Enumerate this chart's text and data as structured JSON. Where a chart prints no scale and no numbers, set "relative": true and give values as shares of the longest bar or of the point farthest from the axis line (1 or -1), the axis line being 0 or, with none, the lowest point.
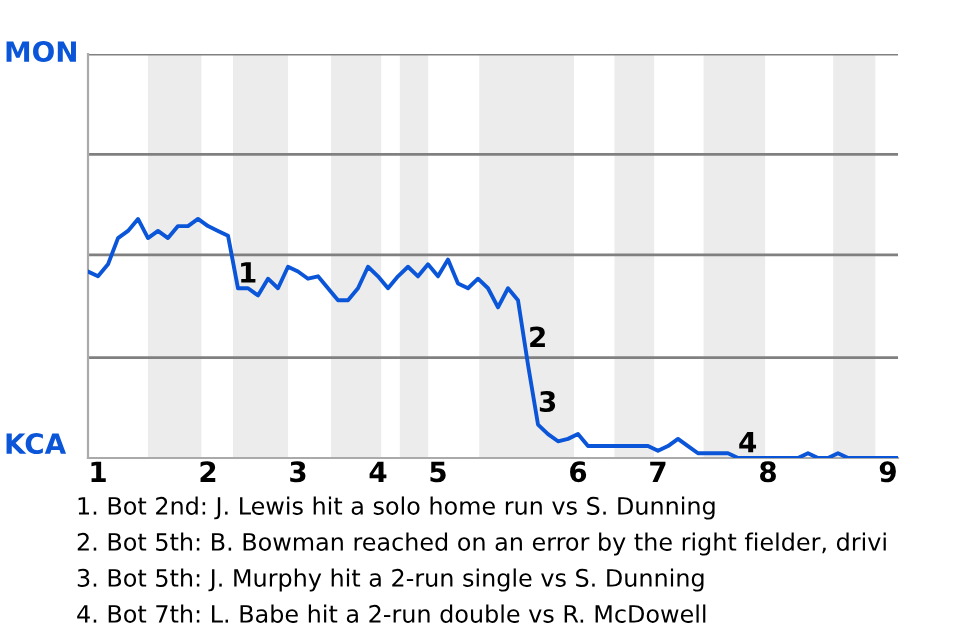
{
  "chart_data": {
    "type": "line",
    "relative": true,
    "categories": [
      null,
      "1",
      null,
      null,
      null,
      null,
      null,
      null,
      null,
      null,
      null,
      null,
      "2",
      null,
      null,
      null,
      null,
      null,
      null,
      null,
      null,
      "3",
      null,
      null,
      null,
      null,
      null,
      null,
      null,
      "4",
      null,
      null,
      null,
      null,
      null,
      "5",
      null,
      null,
      null,
      null,
      null,
      null,
      null,
      null,
      null,
      null,
      null,
      null,
      null,
      "6",
      null,
      null,
      null,
      null,
      null,
      null,
      null,
      "7",
      null,
      null,
      null,
      null,
      null,
      null,
      null,
      null,
      null,
      null,
      "8",
      null,
      null,
      null,
      null,
      null,
      null,
      null,
      null,
      null,
      null,
      null,
      "9",
      null
    ],
    "series": [
      {
        "color": "#0a55d8",
        "values": [
          0.78,
          0.76,
          0.81,
          0.92,
          0.95,
          1,
          0.92,
          0.95,
          0.92,
          0.97,
          0.97,
          1,
          0.97,
          0.95,
          0.93,
          0.71,
          0.71,
          0.68,
          0.75,
          0.71,
          0.8,
          0.78,
          0.75,
          0.76,
          0.71,
          0.66,
          0.66,
          0.71,
          0.8,
          0.76,
          0.71,
          0.76,
          0.8,
          0.76,
          0.81,
          0.76,
          0.83,
          0.73,
          0.71,
          0.75,
          0.71,
          0.63,
          0.71,
          0.66,
          0.39,
          0.14,
          0.1,
          0.07,
          0.08,
          0.1,
          0.05,
          0.05,
          0.05,
          0.05,
          0.05,
          0.05,
          0.05,
          0.03,
          0.05,
          0.08,
          0.05,
          0.02,
          0.02,
          0.02,
          0.02,
          0,
          0,
          0,
          0,
          0,
          0,
          0,
          0.02,
          0,
          0,
          0.02,
          0,
          0,
          0,
          0,
          0,
          0
        ]
      }
    ],
    "marker": "none",
    "line_style": "solid",
    "ref_lines": [
      {
        "axis": "y",
        "value": 0.42,
        "color": "#808080"
      },
      {
        "axis": "y",
        "value": 0.85,
        "color": "#808080"
      },
      {
        "axis": "y",
        "value": 1.27,
        "color": "#808080"
      },
      {
        "axis": "y",
        "value": 1.69,
        "color": "#808080"
      }
    ],
    "annotations": [
      "MON",
      "KCA",
      {
        "text": "1",
        "y": 0.71
      },
      {
        "text": "2",
        "y": 0.44
      },
      {
        "text": "3",
        "y": 0.17
      },
      {
        "text": "4",
        "y": 0
      },
      "1. Bot 2nd: J. Lewis hit a solo home run vs S. Dunning",
      "2. Bot 5th: B. Bowman reached on an error by the right fielder, drivi",
      "3. Bot 5th: J. Murphy hit a 2-run single vs S. Dunning",
      "4. Bot 7th: L. Babe hit a 2-run double vs R. McDowell"
    ]
  }
}
